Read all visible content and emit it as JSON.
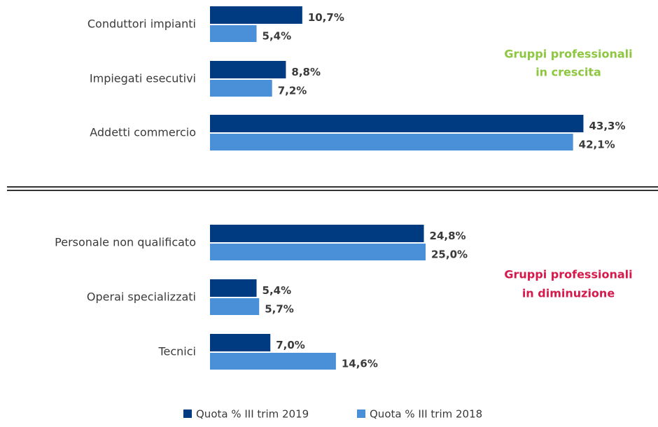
{
  "chart_data": {
    "type": "bar",
    "orientation": "horizontal",
    "categories": [
      "Conduttori impianti",
      "Impiegati esecutivi",
      "Addetti commercio",
      "Personale non qualificato",
      "Operai specializzati",
      "Tecnici"
    ],
    "series": [
      {
        "name": "Quota % III trim 2019",
        "color": "#003a80",
        "values": [
          10.7,
          8.8,
          43.3,
          24.8,
          5.4,
          7.0
        ],
        "value_labels": [
          "10,7%",
          "8,8%",
          "43,3%",
          "24,8%",
          "5,4%",
          "7,0%"
        ]
      },
      {
        "name": "Quota % III trim 2018",
        "color": "#4a90d9",
        "values": [
          5.4,
          7.2,
          42.1,
          25.0,
          5.7,
          14.6
        ],
        "value_labels": [
          "5,4%",
          "7,2%",
          "42,1%",
          "25,0%",
          "5,7%",
          "14,6%"
        ]
      }
    ],
    "xlim": [
      0,
      50
    ],
    "annotations": [
      {
        "lines": [
          "Gruppi professionali",
          "in crescita"
        ],
        "color": "#8dc63f"
      },
      {
        "lines": [
          "Gruppi professionali",
          "in diminuzione"
        ],
        "color": "#d6194b"
      }
    ],
    "legend": "bottom"
  }
}
